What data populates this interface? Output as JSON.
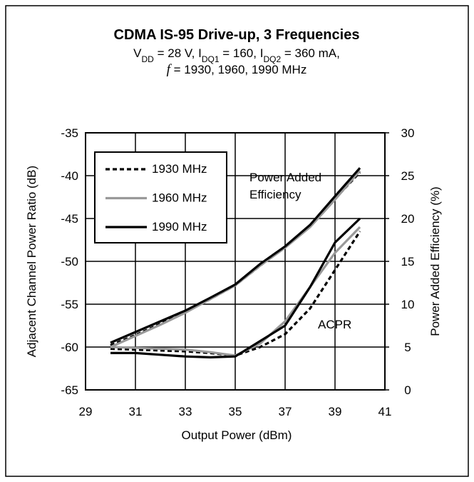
{
  "chart_data": {
    "type": "line",
    "title": "CDMA IS-95 Drive-up, 3 Frequencies",
    "subtitle": [
      [
        {
          "text": "V"
        },
        {
          "text": "DD",
          "sub": true
        },
        {
          "text": " = 28 V, I"
        },
        {
          "text": "DQ1",
          "sub": true
        },
        {
          "text": " = 160, I"
        },
        {
          "text": "DQ2",
          "sub": true
        },
        {
          "text": " = 360 mA,"
        }
      ],
      [
        {
          "text": "f",
          "italic": true
        },
        {
          "text": " = 1930, 1960, 1990 MHz"
        }
      ]
    ],
    "xlabel": "Output Power (dBm)",
    "ylabel": "Adjacent Channel Power Ratio (dB)",
    "y2label": "Power Added Efficiency (%)",
    "annotations": [
      "Power Added",
      "Efficiency",
      "ACPR"
    ],
    "x": [
      30,
      31,
      32,
      33,
      34,
      35,
      36,
      37,
      38,
      39,
      40
    ],
    "xlim": [
      29,
      41
    ],
    "xticks": [
      29,
      31,
      33,
      35,
      37,
      39,
      41
    ],
    "ylim": [
      -65,
      -35
    ],
    "yticks": [
      -65,
      -60,
      -55,
      -50,
      -45,
      -40,
      -35
    ],
    "y2lim": [
      0,
      30
    ],
    "y2ticks": [
      0,
      5,
      10,
      15,
      20,
      25,
      30
    ],
    "grid": true,
    "legend": "upper left",
    "series": [
      {
        "name": "1930 MHz",
        "color": "#000000",
        "dashed": true,
        "values": [
          -60.2,
          -60.3,
          -60.4,
          -60.5,
          -60.7,
          -61,
          -60,
          -58.5,
          -55.5,
          -51,
          -46.5
        ],
        "y2_values": [
          5.2,
          6.4,
          7.7,
          9.1,
          10.6,
          12.2,
          14.5,
          16.7,
          19.1,
          22.3,
          25.4
        ]
      },
      {
        "name": "1960 MHz",
        "color": "#999999",
        "dashed": false,
        "values": [
          -60,
          -60.1,
          -60.2,
          -60.3,
          -60.6,
          -61,
          -59.6,
          -57,
          -53,
          -49,
          -46
        ],
        "y2_values": [
          5,
          6.3,
          7.6,
          9,
          10.6,
          12.2,
          14.5,
          16.6,
          19,
          22.2,
          25.6
        ]
      },
      {
        "name": "1990 MHz",
        "color": "#000000",
        "dashed": false,
        "values": [
          -60.7,
          -60.7,
          -60.9,
          -61.1,
          -61.2,
          -61.1,
          -59.3,
          -57.5,
          -53,
          -47.8,
          -45
        ],
        "y2_values": [
          5.5,
          6.75,
          8,
          9.25,
          10.75,
          12.3,
          14.7,
          16.75,
          19.25,
          22.6,
          25.9
        ]
      }
    ]
  }
}
